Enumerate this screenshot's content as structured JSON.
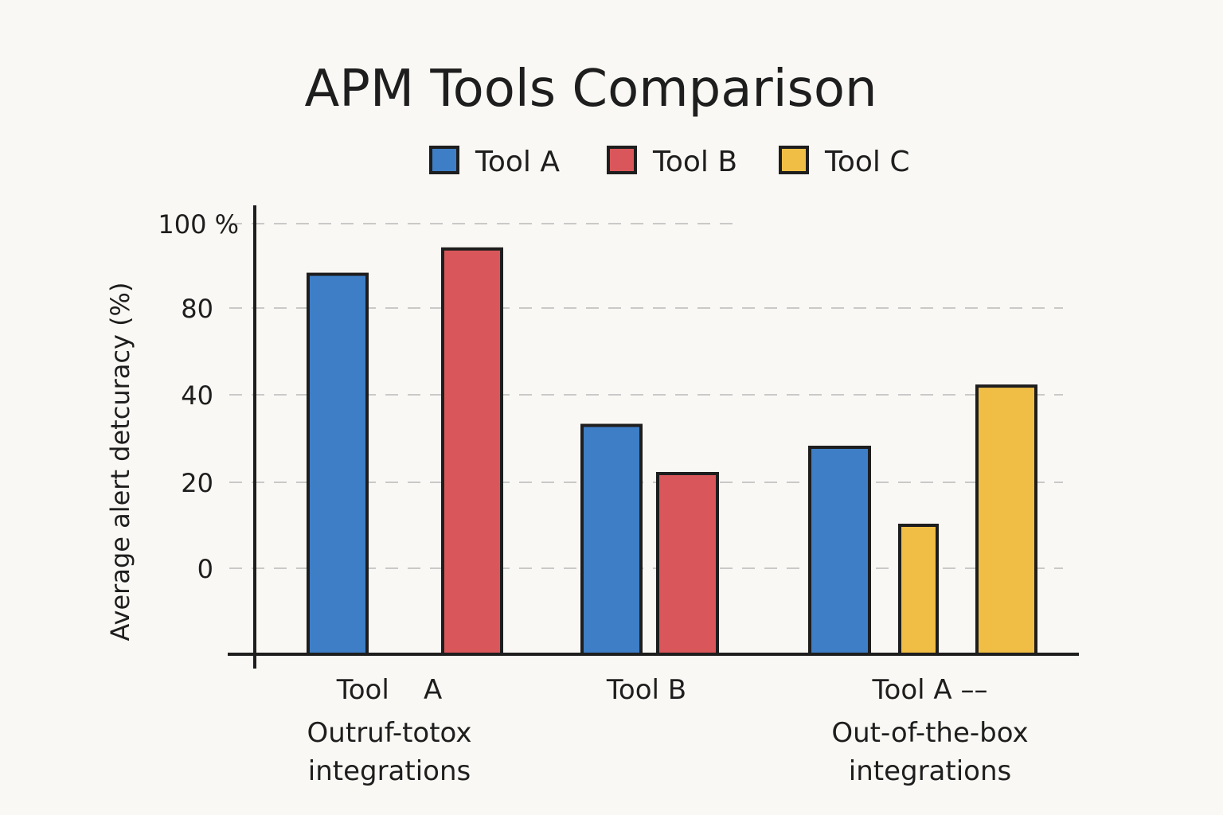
{
  "chart_data": {
    "type": "bar",
    "title": "APM Tools Comparison",
    "ylabel": "Average alert detcuracy (%)",
    "xlabel": "",
    "legend": {
      "placement": "top",
      "entries": [
        {
          "name": "Tool A",
          "color": "#3d7ec6"
        },
        {
          "name": "Tool B",
          "color": "#d9575a"
        },
        {
          "name": "Tool C",
          "color": "#f0bd45"
        }
      ]
    },
    "y_ticks": [
      {
        "label": "100 %",
        "value": 100
      },
      {
        "label": "80",
        "value": 80
      },
      {
        "label": "40",
        "value": 40
      },
      {
        "label": "20",
        "value": 20
      },
      {
        "label": "0",
        "value": 0
      }
    ],
    "ylim_note": "axis as drawn: 0 at dashed line above baseline, uneven tick spacing",
    "grid": true,
    "groups": [
      {
        "label_lines": [
          "Tool    A",
          "Outruf-totox",
          "integrations"
        ],
        "bars": [
          {
            "series": "Tool A",
            "value": 88
          },
          {
            "series": "Tool B",
            "value": 94
          }
        ]
      },
      {
        "label_lines": [
          "Tool B"
        ],
        "bars": [
          {
            "series": "Tool A",
            "value": 33
          },
          {
            "series": "Tool B",
            "value": 22
          }
        ]
      },
      {
        "label_lines": [
          "Tool A ––",
          "Out-of-the-box",
          "integrations"
        ],
        "bars": [
          {
            "series": "Tool A",
            "value": 28
          },
          {
            "series": "Tool C",
            "value": 10
          },
          {
            "series": "Tool C",
            "value": 44
          }
        ]
      }
    ]
  }
}
